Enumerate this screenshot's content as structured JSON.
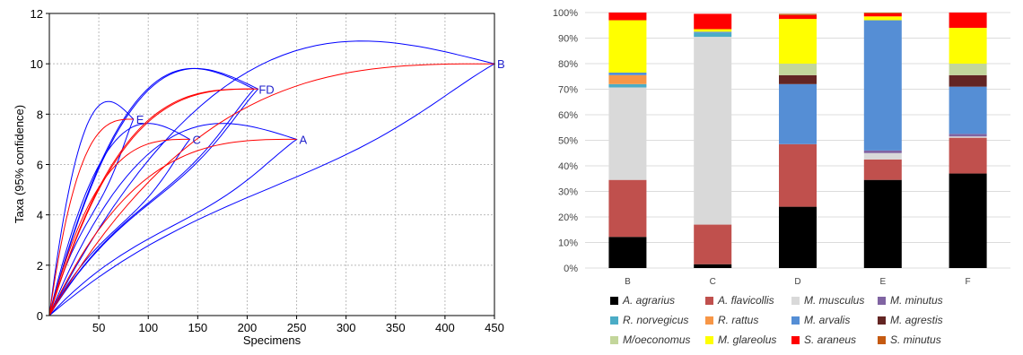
{
  "chart_data": [
    {
      "type": "line",
      "xlabel": "Specimens",
      "ylabel": "Taxa (95% confidence)",
      "xlim": [
        0,
        450
      ],
      "ylim": [
        0,
        12
      ],
      "x_ticks": [
        "50",
        "100",
        "150",
        "200",
        "250",
        "300",
        "350",
        "400",
        "450"
      ],
      "y_ticks": [
        "0",
        "2",
        "4",
        "6",
        "8",
        "10",
        "12"
      ],
      "grid": true,
      "series_colors": {
        "curve": "#ff0000",
        "confidence": "#0000ff"
      },
      "series": [
        {
          "name": "A",
          "end": [
            250,
            7
          ]
        },
        {
          "name": "B",
          "end": [
            450,
            10
          ]
        },
        {
          "name": "C",
          "end": [
            142,
            7
          ]
        },
        {
          "name": "D",
          "end": [
            211,
            9
          ]
        },
        {
          "name": "E",
          "end": [
            85,
            7.8
          ]
        },
        {
          "name": "F",
          "end": [
            207,
            9
          ]
        }
      ],
      "end_labels": [
        "A",
        "B",
        "C",
        "FD",
        "E"
      ]
    },
    {
      "type": "bar",
      "stacked": true,
      "percent": true,
      "categories": [
        "B",
        "C",
        "D",
        "E",
        "F"
      ],
      "y_ticks": [
        "0%",
        "10%",
        "20%",
        "30%",
        "40%",
        "50%",
        "60%",
        "70%",
        "80%",
        "90%",
        "100%"
      ],
      "ylim": [
        0,
        100
      ],
      "grid": true,
      "legend_position": "bottom",
      "series": [
        {
          "name": "A. agrarius",
          "color": "#000000",
          "values": [
            12.2,
            1.5,
            24,
            34.5,
            37
          ]
        },
        {
          "name": "A. flavicollis",
          "color": "#c0504d",
          "values": [
            22.3,
            15.5,
            24.5,
            8,
            14
          ]
        },
        {
          "name": "M. musculus",
          "color": "#d9d9d9",
          "values": [
            36.2,
            73.5,
            0,
            2.5,
            0.5
          ]
        },
        {
          "name": "M. minutus",
          "color": "#8064a2",
          "values": [
            0,
            0,
            0,
            1,
            1
          ]
        },
        {
          "name": "R. norvegicus",
          "color": "#4bacc6",
          "values": [
            1.3,
            1.5,
            0,
            0,
            0
          ]
        },
        {
          "name": "R. rattus",
          "color": "#f79646",
          "values": [
            3.5,
            0,
            0,
            0,
            0
          ]
        },
        {
          "name": "M. arvalis",
          "color": "#558ed5",
          "values": [
            1,
            0.5,
            23.5,
            51,
            18.5
          ]
        },
        {
          "name": "M. agrestis",
          "color": "#632523",
          "values": [
            0,
            0,
            3.5,
            0,
            4.5
          ]
        },
        {
          "name": "M/oeconomus",
          "color": "#c3d69b",
          "values": [
            0,
            0,
            4.5,
            0,
            4.5
          ]
        },
        {
          "name": "M. glareolus",
          "color": "#ffff00",
          "values": [
            20.5,
            1,
            17.5,
            1.5,
            14
          ]
        },
        {
          "name": "S. araneus",
          "color": "#ff0000",
          "values": [
            3,
            6,
            1.5,
            1.2,
            6
          ]
        },
        {
          "name": "S. minutus",
          "color": "#c55a11",
          "values": [
            0,
            0,
            0.5,
            0.3,
            0
          ]
        }
      ]
    }
  ]
}
